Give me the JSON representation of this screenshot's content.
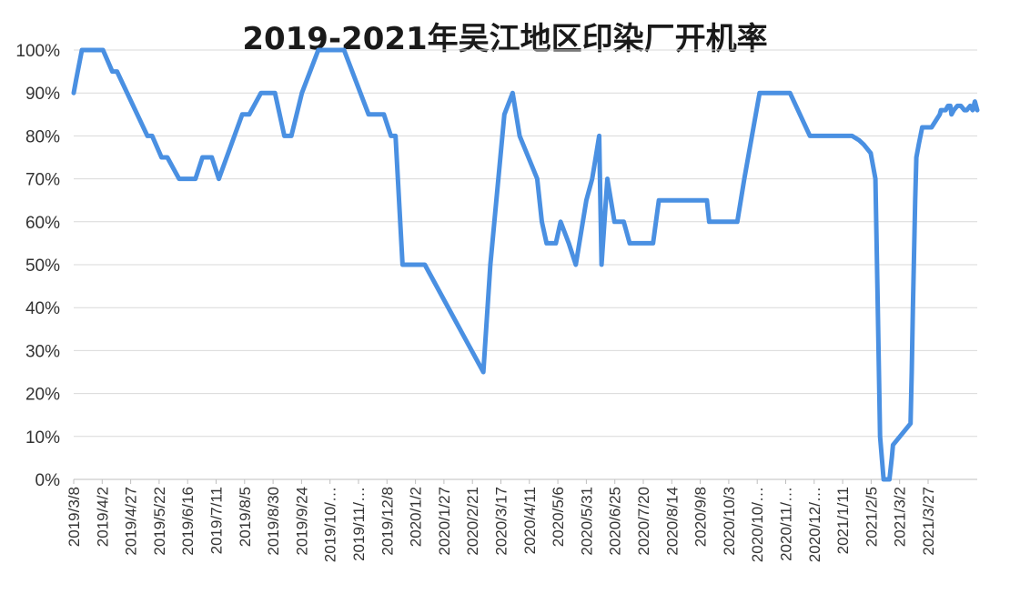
{
  "chart_data": {
    "type": "line",
    "title": "2019-2021年吴江地区印染厂开机率",
    "xlabel": "",
    "ylabel": "",
    "ylim": [
      0,
      100
    ],
    "y_ticks": [
      "0%",
      "10%",
      "20%",
      "30%",
      "40%",
      "50%",
      "60%",
      "70%",
      "80%",
      "90%",
      "100%"
    ],
    "x_range": [
      "2019/3/8",
      "2021/4/18"
    ],
    "x_ticks": [
      "2019/3/8",
      "2019/4/2",
      "2019/4/27",
      "2019/5/22",
      "2019/6/16",
      "2019/7/11",
      "2019/8/5",
      "2019/8/30",
      "2019/9/24",
      "2019/10/…",
      "2019/11/…",
      "2019/12/8",
      "2020/1/2",
      "2020/1/27",
      "2020/2/21",
      "2020/3/17",
      "2020/4/11",
      "2020/5/6",
      "2020/5/31",
      "2020/6/25",
      "2020/7/20",
      "2020/8/14",
      "2020/9/8",
      "2020/10/3",
      "2020/10/…",
      "2020/11/…",
      "2020/12/…",
      "2021/1/11",
      "2021/2/5",
      "2021/3/2",
      "2021/3/27"
    ],
    "grid": true,
    "legend": "none",
    "series_color": "#4a90e2",
    "series": [
      {
        "name": "",
        "x": [
          "2019-03-08",
          "2019-03-10",
          "2019-03-15",
          "2019-04-02",
          "2019-04-10",
          "2019-04-14",
          "2019-05-10",
          "2019-05-14",
          "2019-05-22",
          "2019-05-27",
          "2019-06-06",
          "2019-06-20",
          "2019-06-26",
          "2019-07-04",
          "2019-07-10",
          "2019-07-30",
          "2019-08-05",
          "2019-08-15",
          "2019-08-27",
          "2019-09-04",
          "2019-09-10",
          "2019-09-19",
          "2019-10-03",
          "2019-10-25",
          "2019-11-15",
          "2019-11-28",
          "2019-12-04",
          "2019-12-08",
          "2019-12-14",
          "2020-01-02",
          "2020-02-21",
          "2020-02-27",
          "2020-03-10",
          "2020-03-17",
          "2020-03-23",
          "2020-04-07",
          "2020-04-11",
          "2020-04-15",
          "2020-04-23",
          "2020-04-27",
          "2020-05-04",
          "2020-05-10",
          "2020-05-19",
          "2020-05-24",
          "2020-05-27",
          "2020-05-30",
          "2020-06-01",
          "2020-06-06",
          "2020-06-12",
          "2020-06-20",
          "2020-06-25",
          "2020-07-15",
          "2020-07-20",
          "2020-08-14",
          "2020-08-30",
          "2020-09-01",
          "2020-09-25",
          "2020-10-01",
          "2020-10-14",
          "2020-10-27",
          "2020-11-09",
          "2020-11-26",
          "2020-12-04",
          "2021-01-01",
          "2021-01-07",
          "2021-01-11",
          "2021-01-17",
          "2021-01-21",
          "2021-01-23",
          "2021-01-25",
          "2021-01-28",
          "2021-02-02",
          "2021-02-04",
          "2021-02-05",
          "2021-02-20",
          "2021-02-21",
          "2021-02-22",
          "2021-02-23",
          "2021-02-24",
          "2021-02-25",
          "2021-02-27",
          "2021-03-02",
          "2021-03-05",
          "2021-03-10",
          "2021-03-17",
          "2021-03-18",
          "2021-03-22",
          "2021-03-24",
          "2021-03-26",
          "2021-03-27",
          "2021-03-29",
          "2021-04-01",
          "2021-04-04",
          "2021-04-07",
          "2021-04-09",
          "2021-04-12",
          "2021-04-14",
          "2021-04-16",
          "2021-04-18"
        ],
        "values": [
          90,
          93,
          100,
          100,
          95,
          95,
          80,
          80,
          75,
          75,
          70,
          70,
          75,
          75,
          70,
          85,
          85,
          90,
          90,
          80,
          80,
          90,
          100,
          100,
          85,
          85,
          80,
          80,
          50,
          50,
          25,
          50,
          85,
          90,
          80,
          70,
          60,
          55,
          55,
          60,
          55,
          50,
          65,
          70,
          75,
          80,
          50,
          70,
          60,
          60,
          55,
          55,
          65,
          65,
          65,
          60,
          60,
          70,
          90,
          90,
          90,
          80,
          80,
          80,
          79,
          78,
          76,
          70,
          40,
          10,
          0,
          0,
          5,
          8,
          13,
          25,
          40,
          52,
          65,
          75,
          78,
          82,
          82,
          82,
          85,
          86,
          86,
          87,
          87,
          85,
          86,
          87,
          87,
          86,
          86,
          87,
          86,
          88,
          86
        ]
      }
    ]
  }
}
